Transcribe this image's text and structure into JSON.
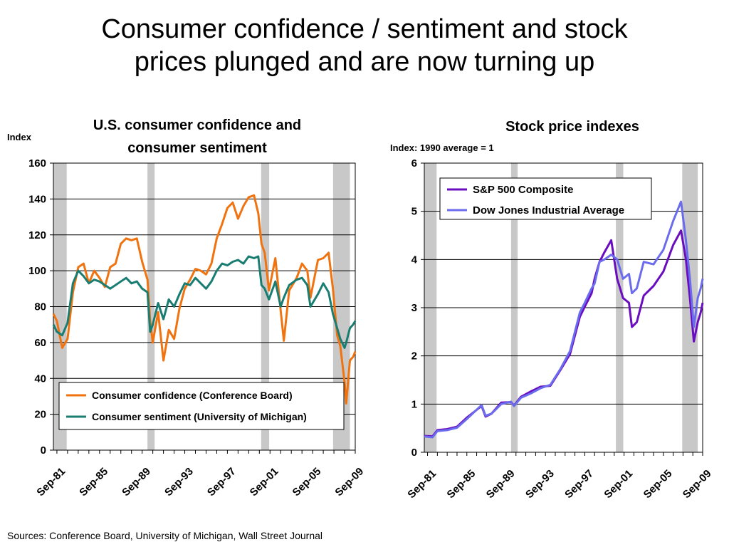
{
  "slide": {
    "title_line1": "Consumer confidence / sentiment and stock",
    "title_line2": "prices plunged and are now turning up",
    "source": "Sources: Conference Board, University of Michigan, Wall Street Journal"
  },
  "chart_data": [
    {
      "type": "line",
      "title_line1": "U.S. consumer confidence and",
      "title_line2": "consumer sentiment",
      "ylabel": "Index",
      "ylim": [
        0,
        160
      ],
      "yticks": [
        0,
        20,
        40,
        60,
        80,
        100,
        120,
        140,
        160
      ],
      "xlim": [
        1981.67,
        2010.0
      ],
      "xtick_labels": [
        "Sep-81",
        "Sep-85",
        "Sep-89",
        "Sep-93",
        "Sep-97",
        "Sep-01",
        "Sep-05",
        "Sep-09"
      ],
      "xtick_values": [
        1981.67,
        1985.67,
        1989.67,
        1993.67,
        1997.67,
        2001.67,
        2005.67,
        2009.67
      ],
      "grid": true,
      "legend_position": "bottom-left",
      "recessions": [
        [
          1981.67,
          1982.92
        ],
        [
          1990.5,
          1991.17
        ],
        [
          2001.17,
          2001.92
        ],
        [
          2007.92,
          2009.5
        ]
      ],
      "series": [
        {
          "name": "Consumer confidence (Conference Board)",
          "color": "#F0730F",
          "x": [
            1981.67,
            1982.0,
            1982.5,
            1983.0,
            1983.5,
            1984.0,
            1984.5,
            1985.0,
            1985.5,
            1986.0,
            1986.5,
            1987.0,
            1987.5,
            1988.0,
            1988.5,
            1989.0,
            1989.5,
            1990.0,
            1990.5,
            1990.75,
            1991.0,
            1991.5,
            1992.0,
            1992.5,
            1993.0,
            1993.5,
            1994.0,
            1994.5,
            1995.0,
            1995.5,
            1996.0,
            1996.5,
            1997.0,
            1997.5,
            1998.0,
            1998.5,
            1999.0,
            1999.5,
            2000.0,
            2000.5,
            2000.9,
            2001.2,
            2001.5,
            2001.9,
            2002.5,
            2003.0,
            2003.3,
            2003.8,
            2004.5,
            2005.0,
            2005.5,
            2005.8,
            2006.5,
            2007.0,
            2007.5,
            2007.9,
            2008.3,
            2008.6,
            2009.0,
            2009.15,
            2009.5,
            2009.8,
            2010.0
          ],
          "values": [
            76,
            72,
            57,
            62,
            88,
            102,
            104,
            93,
            100,
            96,
            91,
            102,
            104,
            115,
            118,
            117,
            118,
            105,
            95,
            72,
            60,
            77,
            50,
            67,
            62,
            79,
            90,
            95,
            101,
            100,
            98,
            104,
            118,
            126,
            135,
            138,
            129,
            136,
            141,
            142,
            132,
            115,
            110,
            89,
            107,
            78,
            61,
            89,
            96,
            104,
            100,
            85,
            106,
            107,
            110,
            90,
            64,
            58,
            38,
            26,
            50,
            52,
            55
          ]
        },
        {
          "name": "Consumer sentiment (University of Michigan)",
          "color": "#1A7D72",
          "x": [
            1981.67,
            1982.0,
            1982.5,
            1983.0,
            1983.5,
            1984.0,
            1984.5,
            1985.0,
            1985.5,
            1986.0,
            1986.5,
            1987.0,
            1987.5,
            1988.0,
            1988.5,
            1989.0,
            1989.5,
            1990.0,
            1990.5,
            1990.75,
            1991.0,
            1991.5,
            1992.0,
            1992.5,
            1993.0,
            1993.5,
            1994.0,
            1994.5,
            1995.0,
            1995.5,
            1996.0,
            1996.5,
            1997.0,
            1997.5,
            1998.0,
            1998.5,
            1999.0,
            1999.5,
            2000.0,
            2000.5,
            2000.9,
            2001.2,
            2001.5,
            2001.9,
            2002.5,
            2003.0,
            2003.3,
            2003.8,
            2004.5,
            2005.0,
            2005.5,
            2005.8,
            2006.5,
            2007.0,
            2007.5,
            2007.9,
            2008.3,
            2008.6,
            2009.0,
            2009.15,
            2009.5,
            2009.8,
            2010.0
          ],
          "values": [
            70,
            66,
            64,
            71,
            93,
            100,
            97,
            93,
            95,
            94,
            92,
            90,
            92,
            94,
            96,
            93,
            94,
            90,
            88,
            66,
            70,
            82,
            73,
            84,
            80,
            87,
            93,
            92,
            96,
            93,
            90,
            94,
            100,
            104,
            103,
            105,
            106,
            104,
            108,
            107,
            108,
            92,
            90,
            84,
            94,
            80,
            85,
            92,
            95,
            96,
            92,
            80,
            87,
            93,
            88,
            76,
            68,
            62,
            57,
            60,
            68,
            70,
            72
          ]
        }
      ]
    },
    {
      "type": "line",
      "title": "Stock price indexes",
      "ylabel": "Index: 1990 average = 1",
      "ylim": [
        0,
        6
      ],
      "yticks": [
        0,
        1,
        2,
        3,
        4,
        5,
        6
      ],
      "xlim": [
        1981.67,
        2010.0
      ],
      "xtick_labels": [
        "Sep-81",
        "Sep-85",
        "Sep-89",
        "Sep-93",
        "Sep-97",
        "Sep-01",
        "Sep-05",
        "Sep-09"
      ],
      "xtick_values": [
        1981.67,
        1985.67,
        1989.67,
        1993.67,
        1997.67,
        2001.67,
        2005.67,
        2009.67
      ],
      "grid": true,
      "legend_position": "top-right",
      "recessions": [
        [
          1981.67,
          1982.92
        ],
        [
          1990.5,
          1991.17
        ],
        [
          2001.17,
          2001.92
        ],
        [
          2007.92,
          2009.5
        ]
      ],
      "series": [
        {
          "name": "S&P 500 Composite",
          "color": "#6A0DC0",
          "x": [
            1981.67,
            1982.5,
            1983.0,
            1984.0,
            1985.0,
            1986.0,
            1987.5,
            1987.9,
            1988.5,
            1989.5,
            1990.5,
            1990.8,
            1991.5,
            1992.5,
            1993.5,
            1994.5,
            1995.5,
            1996.5,
            1997.5,
            1998.0,
            1998.7,
            1999.0,
            1999.5,
            2000.0,
            2000.7,
            2001.3,
            2001.9,
            2002.5,
            2002.8,
            2003.3,
            2004.0,
            2005.0,
            2006.0,
            2007.0,
            2007.8,
            2008.3,
            2008.7,
            2009.1,
            2009.5,
            2009.8,
            2010.0
          ],
          "values": [
            0.34,
            0.33,
            0.46,
            0.48,
            0.53,
            0.72,
            0.96,
            0.74,
            0.8,
            1.03,
            1.04,
            0.97,
            1.15,
            1.26,
            1.36,
            1.38,
            1.7,
            2.04,
            2.81,
            3.02,
            3.3,
            3.6,
            3.95,
            4.15,
            4.4,
            3.6,
            3.2,
            3.1,
            2.6,
            2.7,
            3.25,
            3.45,
            3.75,
            4.3,
            4.6,
            4.0,
            3.2,
            2.3,
            2.7,
            2.9,
            3.1
          ]
        },
        {
          "name": "Dow Jones Industrial Average",
          "color": "#6B6BEE",
          "x": [
            1981.67,
            1982.5,
            1983.0,
            1984.0,
            1985.0,
            1986.0,
            1987.5,
            1987.9,
            1988.5,
            1989.5,
            1990.5,
            1990.8,
            1991.5,
            1992.5,
            1993.5,
            1994.5,
            1995.5,
            1996.5,
            1997.5,
            1998.0,
            1998.7,
            1999.0,
            1999.5,
            2000.0,
            2000.7,
            2001.3,
            2001.9,
            2002.5,
            2002.8,
            2003.3,
            2004.0,
            2005.0,
            2006.0,
            2007.0,
            2007.8,
            2008.3,
            2008.7,
            2009.1,
            2009.5,
            2009.8,
            2010.0
          ],
          "values": [
            0.33,
            0.31,
            0.44,
            0.46,
            0.51,
            0.69,
            0.98,
            0.76,
            0.8,
            1.0,
            1.05,
            0.96,
            1.13,
            1.22,
            1.33,
            1.4,
            1.72,
            2.1,
            2.9,
            3.1,
            3.4,
            3.5,
            3.95,
            4.0,
            4.1,
            4.0,
            3.6,
            3.7,
            3.3,
            3.4,
            3.95,
            3.9,
            4.2,
            4.8,
            5.2,
            4.4,
            3.6,
            2.6,
            3.2,
            3.4,
            3.6
          ]
        }
      ]
    }
  ]
}
